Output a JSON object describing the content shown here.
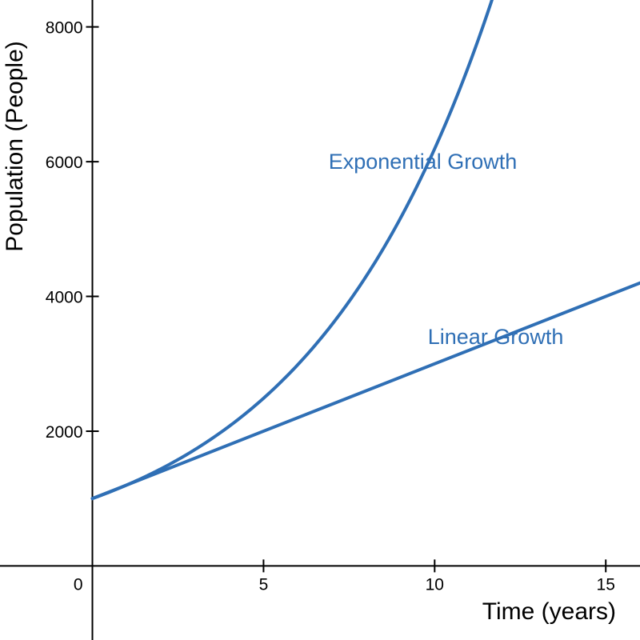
{
  "chart_data": {
    "type": "line",
    "xlabel": "Time (years)",
    "ylabel": "Population (People)",
    "xlim": [
      -2.7,
      16
    ],
    "ylim": [
      -1100,
      8400
    ],
    "xticks": [
      0,
      5,
      10,
      15
    ],
    "yticks": [
      2000,
      4000,
      6000,
      8000
    ],
    "xtick_labels": [
      "0",
      "5",
      "10",
      "15"
    ],
    "ytick_labels": [
      "2000",
      "4000",
      "6000",
      "8000"
    ],
    "grid": false,
    "series": [
      {
        "name": "Exponential Growth",
        "color": "#2f6fb5",
        "x": [
          0,
          1,
          2,
          3,
          4,
          5,
          6,
          7,
          8,
          9,
          10,
          11,
          11.8
        ],
        "y": [
          1000,
          1200,
          1440,
          1728,
          2074,
          2488,
          2986,
          3583,
          4300,
          5160,
          6192,
          7430,
          8600
        ]
      },
      {
        "name": "Linear Growth",
        "color": "#2f6fb5",
        "x": [
          0,
          16
        ],
        "y": [
          1000,
          4200
        ]
      }
    ],
    "annotations": [
      {
        "text": "Exponential Growth",
        "x": 6.9,
        "y": 6000
      },
      {
        "text": "Linear Growth",
        "x": 9.8,
        "y": 3400
      }
    ]
  }
}
